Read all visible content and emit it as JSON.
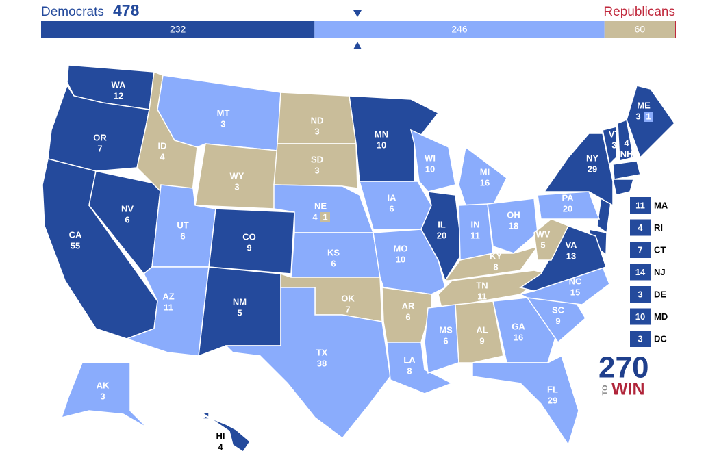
{
  "header": {
    "left_label": "Democrats",
    "left_total": "478",
    "right_label": "Republicans",
    "bar": [
      {
        "value": 232,
        "color": "#244a9c"
      },
      {
        "value": 246,
        "color": "#8aacfc"
      },
      {
        "value": 60,
        "color": "#c9bd9a"
      }
    ]
  },
  "states": [
    {
      "abbr": "WA",
      "ev": 12,
      "color": "#244a9c"
    },
    {
      "abbr": "OR",
      "ev": 7,
      "color": "#244a9c"
    },
    {
      "abbr": "CA",
      "ev": 55,
      "color": "#244a9c"
    },
    {
      "abbr": "NV",
      "ev": 6,
      "color": "#244a9c"
    },
    {
      "abbr": "ID",
      "ev": 4,
      "color": "#c9bd9a"
    },
    {
      "abbr": "MT",
      "ev": 3,
      "color": "#8aacfc"
    },
    {
      "abbr": "WY",
      "ev": 3,
      "color": "#c9bd9a"
    },
    {
      "abbr": "UT",
      "ev": 6,
      "color": "#8aacfc"
    },
    {
      "abbr": "CO",
      "ev": 9,
      "color": "#244a9c"
    },
    {
      "abbr": "AZ",
      "ev": 11,
      "color": "#8aacfc"
    },
    {
      "abbr": "NM",
      "ev": 5,
      "color": "#244a9c"
    },
    {
      "abbr": "ND",
      "ev": 3,
      "color": "#c9bd9a"
    },
    {
      "abbr": "SD",
      "ev": 3,
      "color": "#c9bd9a"
    },
    {
      "abbr": "NE",
      "ev": 4,
      "color": "#8aacfc",
      "split": {
        "ev": 1,
        "color": "#c9bd9a"
      }
    },
    {
      "abbr": "KS",
      "ev": 6,
      "color": "#8aacfc"
    },
    {
      "abbr": "OK",
      "ev": 7,
      "color": "#c9bd9a"
    },
    {
      "abbr": "TX",
      "ev": 38,
      "color": "#8aacfc"
    },
    {
      "abbr": "MN",
      "ev": 10,
      "color": "#244a9c"
    },
    {
      "abbr": "IA",
      "ev": 6,
      "color": "#8aacfc"
    },
    {
      "abbr": "MO",
      "ev": 10,
      "color": "#8aacfc"
    },
    {
      "abbr": "AR",
      "ev": 6,
      "color": "#c9bd9a"
    },
    {
      "abbr": "LA",
      "ev": 8,
      "color": "#8aacfc"
    },
    {
      "abbr": "WI",
      "ev": 10,
      "color": "#8aacfc"
    },
    {
      "abbr": "IL",
      "ev": 20,
      "color": "#244a9c"
    },
    {
      "abbr": "MI",
      "ev": 16,
      "color": "#8aacfc"
    },
    {
      "abbr": "IN",
      "ev": 11,
      "color": "#8aacfc"
    },
    {
      "abbr": "OH",
      "ev": 18,
      "color": "#8aacfc"
    },
    {
      "abbr": "KY",
      "ev": 8,
      "color": "#c9bd9a"
    },
    {
      "abbr": "TN",
      "ev": 11,
      "color": "#c9bd9a"
    },
    {
      "abbr": "MS",
      "ev": 6,
      "color": "#8aacfc"
    },
    {
      "abbr": "AL",
      "ev": 9,
      "color": "#c9bd9a"
    },
    {
      "abbr": "GA",
      "ev": 16,
      "color": "#8aacfc"
    },
    {
      "abbr": "FL",
      "ev": 29,
      "color": "#8aacfc"
    },
    {
      "abbr": "SC",
      "ev": 9,
      "color": "#8aacfc"
    },
    {
      "abbr": "NC",
      "ev": 15,
      "color": "#8aacfc"
    },
    {
      "abbr": "VA",
      "ev": 13,
      "color": "#244a9c"
    },
    {
      "abbr": "WV",
      "ev": 5,
      "color": "#c9bd9a"
    },
    {
      "abbr": "PA",
      "ev": 20,
      "color": "#8aacfc"
    },
    {
      "abbr": "NY",
      "ev": 29,
      "color": "#244a9c"
    },
    {
      "abbr": "VT",
      "ev": 3,
      "color": "#244a9c"
    },
    {
      "abbr": "NH",
      "ev": 4,
      "color": "#244a9c"
    },
    {
      "abbr": "ME",
      "ev": 3,
      "color": "#244a9c",
      "split": {
        "ev": 1,
        "color": "#8aacfc"
      }
    },
    {
      "abbr": "AK",
      "ev": 3,
      "color": "#8aacfc"
    },
    {
      "abbr": "HI",
      "ev": 4,
      "color": "#244a9c"
    }
  ],
  "small_states": [
    {
      "abbr": "MA",
      "ev": 11,
      "color": "#244a9c"
    },
    {
      "abbr": "RI",
      "ev": 4,
      "color": "#244a9c"
    },
    {
      "abbr": "CT",
      "ev": 7,
      "color": "#244a9c"
    },
    {
      "abbr": "NJ",
      "ev": 14,
      "color": "#244a9c"
    },
    {
      "abbr": "DE",
      "ev": 3,
      "color": "#244a9c"
    },
    {
      "abbr": "MD",
      "ev": 10,
      "color": "#244a9c"
    },
    {
      "abbr": "DC",
      "ev": 3,
      "color": "#244a9c"
    }
  ],
  "logo": {
    "number": "270",
    "small": "TO",
    "word": "WIN"
  }
}
